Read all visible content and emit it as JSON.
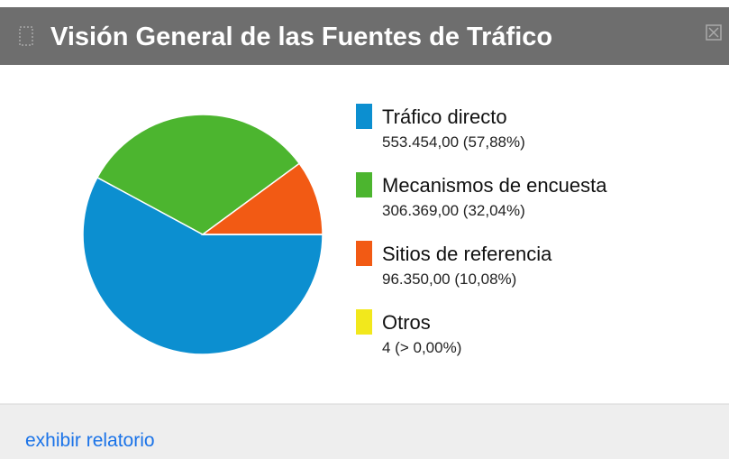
{
  "header": {
    "title": "Visión General de las Fuentes de Tráfico"
  },
  "chart_data": {
    "type": "pie",
    "categories": [
      "Tráfico directo",
      "Mecanismos de encuesta",
      "Sitios de referencia",
      "Otros"
    ],
    "values": [
      553454,
      306369,
      96350,
      4
    ],
    "value_labels": [
      "553.454,00 (57,88%)",
      "306.369,00 (32,04%)",
      "96.350,00 (10,08%)",
      "4 (> 0,00%)"
    ],
    "colors": [
      "#0c8fd0",
      "#4cb52f",
      "#f25a14",
      "#f2e81c"
    ]
  },
  "footer": {
    "link": "exhibir relatorio"
  }
}
